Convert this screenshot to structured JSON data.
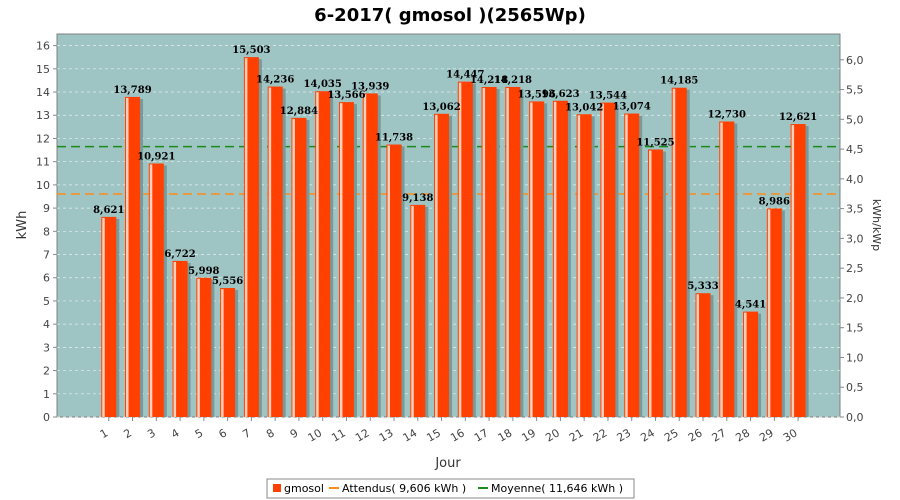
{
  "chart_data": {
    "type": "bar",
    "title": "6-2017( gmosol )(2565Wp)",
    "xlabel": "Jour",
    "ylabel": "kWh",
    "ylabel_right": "kWh/kWp",
    "ylim": [
      0,
      16.5
    ],
    "ylim_right": [
      0,
      6.433
    ],
    "yticks": [
      0,
      1,
      2,
      3,
      4,
      5,
      6,
      7,
      8,
      9,
      10,
      11,
      12,
      13,
      14,
      15,
      16
    ],
    "yticks_right": [
      "0,0",
      "0,5",
      "1,0",
      "1,5",
      "2,0",
      "2,5",
      "3,0",
      "3,5",
      "4,0",
      "4,5",
      "5,0",
      "5,5",
      "6,0"
    ],
    "yticks_right_values": [
      0,
      0.5,
      1,
      1.5,
      2,
      2.5,
      3,
      3.5,
      4,
      4.5,
      5,
      5.5,
      6
    ],
    "categories": [
      "1",
      "2",
      "3",
      "4",
      "5",
      "6",
      "7",
      "8",
      "9",
      "10",
      "11",
      "12",
      "13",
      "14",
      "15",
      "16",
      "17",
      "18",
      "19",
      "20",
      "21",
      "22",
      "23",
      "24",
      "25",
      "26",
      "27",
      "28",
      "29",
      "30"
    ],
    "series": [
      {
        "name": "gmosol",
        "color": "#ff4000",
        "values": [
          8.621,
          13.789,
          10.921,
          6.722,
          5.998,
          5.556,
          15.503,
          14.236,
          12.884,
          14.035,
          13.566,
          13.939,
          11.738,
          9.138,
          13.062,
          14.447,
          14.218,
          14.218,
          13.596,
          13.623,
          13.042,
          13.544,
          13.074,
          11.525,
          14.185,
          5.333,
          12.73,
          4.541,
          8.986,
          12.621
        ],
        "labels": [
          "8,621",
          "13,789",
          "10,921",
          "6,722",
          "5,998",
          "5,556",
          "15,503",
          "14,236",
          "12,884",
          "14,035",
          "13,566",
          "13,939",
          "11,738",
          "9,138",
          "13,062",
          "14,447",
          "14,218",
          "14,218",
          "13,596",
          "13,623",
          "13,042",
          "13,544",
          "13,074",
          "11,525",
          "14,185",
          "5,333",
          "12,730",
          "4,541",
          "8,986",
          "12,621"
        ]
      }
    ],
    "expected_line": {
      "name": "Attendus( 9,606 kWh )",
      "value": 9.606,
      "color": "#ff8c1a"
    },
    "average_line": {
      "name": "Moyenne( 11,646 kWh )",
      "value": 11.646,
      "color": "#1a8c1a"
    },
    "grid": true,
    "legend_position": "bottom",
    "plot_background": "#9ec4c4"
  }
}
